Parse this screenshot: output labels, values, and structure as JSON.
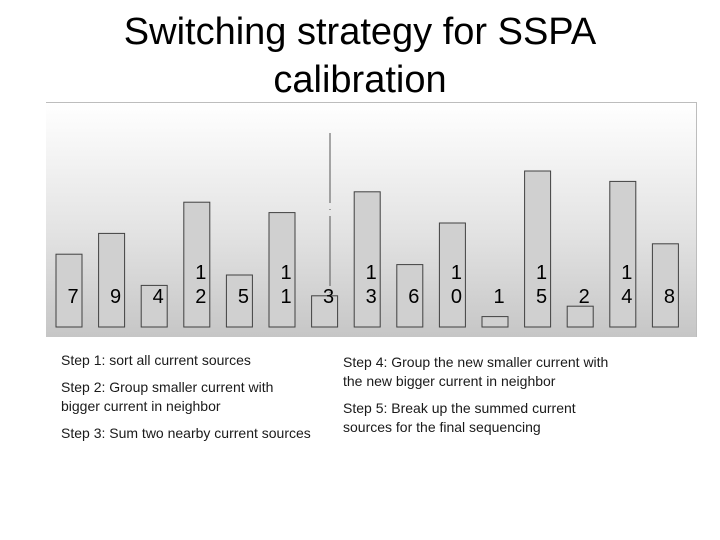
{
  "title": "Switching strategy for SSPA calibration",
  "chart_data": {
    "type": "bar",
    "values": [
      7,
      9,
      4,
      12,
      5,
      11,
      3,
      13,
      6,
      10,
      1,
      15,
      2,
      14,
      8
    ],
    "labels": [
      "7",
      "9",
      "4",
      "1\n2",
      "5",
      "1\n1",
      "3",
      "1\n3",
      "6",
      "1\n0",
      "1",
      "1\n5",
      "2",
      "1\n4",
      "8"
    ],
    "ylim": [
      0,
      15
    ],
    "bar_color": "#d0d0d0",
    "bar_edge_color": "#404040",
    "background": "gradient white to light gray"
  },
  "steps_left": [
    "Step 1: sort all current sources",
    "Step 2: Group smaller current with bigger current in neighbor",
    "Step 3: Sum two nearby current sources"
  ],
  "steps_right": [
    "Step 4: Group the new smaller current with the new bigger current in neighbor",
    "Step 5: Break up the summed current sources for the final sequencing"
  ]
}
